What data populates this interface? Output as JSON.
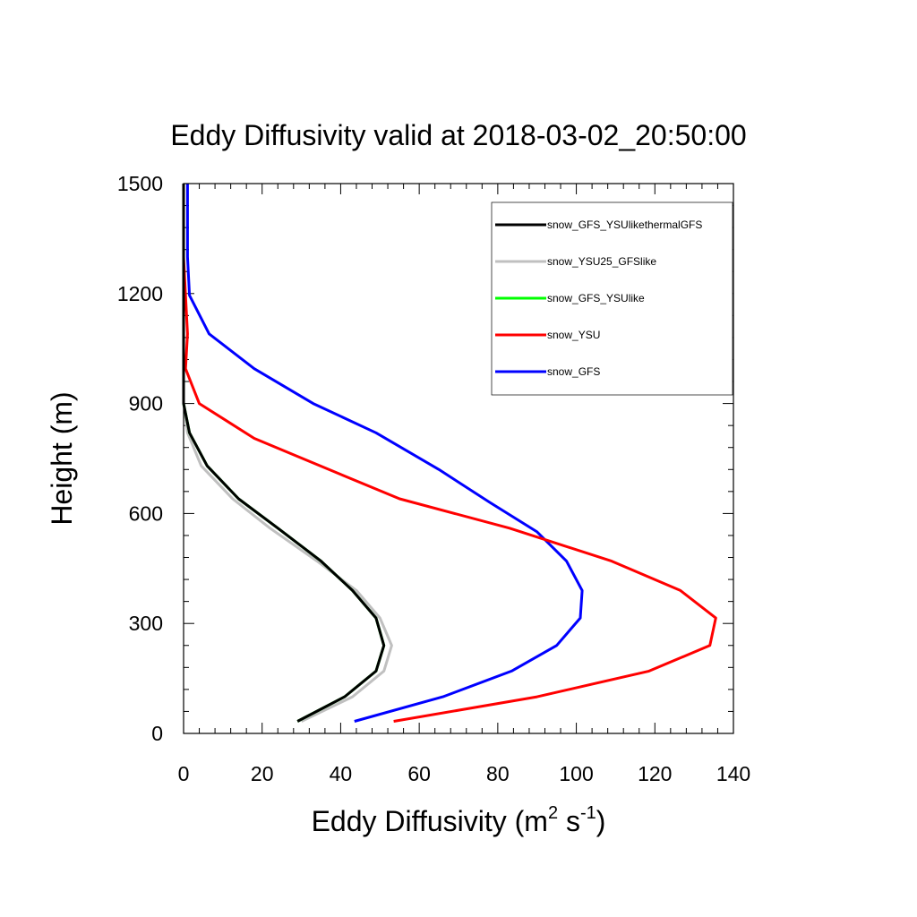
{
  "chart_data": {
    "type": "line",
    "title": "Eddy Diffusivity valid at 2018-03-02_20:50:00",
    "xlabel": {
      "main": "Eddy Diffusivity (m",
      "sup1": "2",
      "mid": " s",
      "sup2": "-1",
      "end": ")"
    },
    "ylabel": "Height (m)",
    "xlim": [
      0,
      140
    ],
    "ylim": [
      0,
      1500
    ],
    "x_ticks": [
      "0",
      "20",
      "40",
      "60",
      "80",
      "100",
      "120",
      "140"
    ],
    "y_ticks": [
      "0",
      "300",
      "600",
      "900",
      "1200",
      "1500"
    ],
    "legend_position": "top-right",
    "series": [
      {
        "name": "snow_GFS",
        "color": "#0000ff",
        "points": [
          [
            43.5,
            33
          ],
          [
            66,
            100
          ],
          [
            83.5,
            170
          ],
          [
            95,
            240
          ],
          [
            101,
            315
          ],
          [
            101.5,
            390
          ],
          [
            97.5,
            470
          ],
          [
            90,
            550
          ],
          [
            78,
            630
          ],
          [
            65,
            720
          ],
          [
            49,
            820
          ],
          [
            33,
            900
          ],
          [
            18,
            995
          ],
          [
            6.5,
            1090
          ],
          [
            1.5,
            1195
          ],
          [
            1,
            1300
          ],
          [
            1,
            1400
          ],
          [
            1,
            1500
          ]
        ]
      },
      {
        "name": "snow_YSU",
        "color": "#ff0000",
        "points": [
          [
            53.5,
            33
          ],
          [
            90,
            100
          ],
          [
            118.5,
            170
          ],
          [
            134,
            240
          ],
          [
            135.5,
            315
          ],
          [
            126.5,
            390
          ],
          [
            109,
            470
          ],
          [
            83,
            560
          ],
          [
            55,
            640
          ],
          [
            37,
            720
          ],
          [
            18,
            805
          ],
          [
            4,
            900
          ],
          [
            0.5,
            995
          ],
          [
            1,
            1090
          ],
          [
            0.5,
            1195
          ],
          [
            0,
            1300
          ],
          [
            0,
            1400
          ],
          [
            0,
            1500
          ]
        ]
      },
      {
        "name": "snow_GFS_YSUlike",
        "color": "#00ff00",
        "points": [
          [
            29,
            33
          ],
          [
            41,
            100
          ],
          [
            49,
            170
          ],
          [
            51,
            240
          ],
          [
            49,
            315
          ],
          [
            43,
            390
          ],
          [
            35,
            470
          ],
          [
            24,
            560
          ],
          [
            14,
            640
          ],
          [
            6,
            730
          ],
          [
            1.5,
            820
          ],
          [
            0,
            900
          ],
          [
            0,
            995
          ],
          [
            0,
            1100
          ],
          [
            0,
            1200
          ],
          [
            0,
            1300
          ],
          [
            0,
            1400
          ],
          [
            0,
            1500
          ]
        ]
      },
      {
        "name": "snow_YSU25_GFSlike",
        "color": "#c0c0c0",
        "points": [
          [
            30,
            33
          ],
          [
            43,
            100
          ],
          [
            51,
            170
          ],
          [
            53,
            240
          ],
          [
            50,
            315
          ],
          [
            44,
            390
          ],
          [
            34,
            470
          ],
          [
            22,
            560
          ],
          [
            12.5,
            640
          ],
          [
            4.5,
            730
          ],
          [
            1,
            820
          ],
          [
            0,
            900
          ],
          [
            0,
            995
          ],
          [
            0,
            1100
          ],
          [
            0,
            1200
          ],
          [
            0,
            1300
          ],
          [
            0,
            1400
          ],
          [
            0,
            1500
          ]
        ]
      },
      {
        "name": "snow_GFS_YSUlikethermalGFS",
        "color": "#000000",
        "points": [
          [
            29,
            33
          ],
          [
            41,
            100
          ],
          [
            49,
            170
          ],
          [
            51,
            240
          ],
          [
            49,
            315
          ],
          [
            43,
            390
          ],
          [
            35,
            470
          ],
          [
            24,
            560
          ],
          [
            14,
            640
          ],
          [
            6,
            730
          ],
          [
            1.5,
            820
          ],
          [
            0,
            900
          ],
          [
            0,
            995
          ],
          [
            0,
            1100
          ],
          [
            0,
            1200
          ],
          [
            0,
            1300
          ],
          [
            0,
            1400
          ],
          [
            0,
            1500
          ]
        ]
      }
    ],
    "legend_order": [
      "snow_GFS_YSUlikethermalGFS",
      "snow_YSU25_GFSlike",
      "snow_GFS_YSUlike",
      "snow_YSU",
      "snow_GFS"
    ]
  }
}
